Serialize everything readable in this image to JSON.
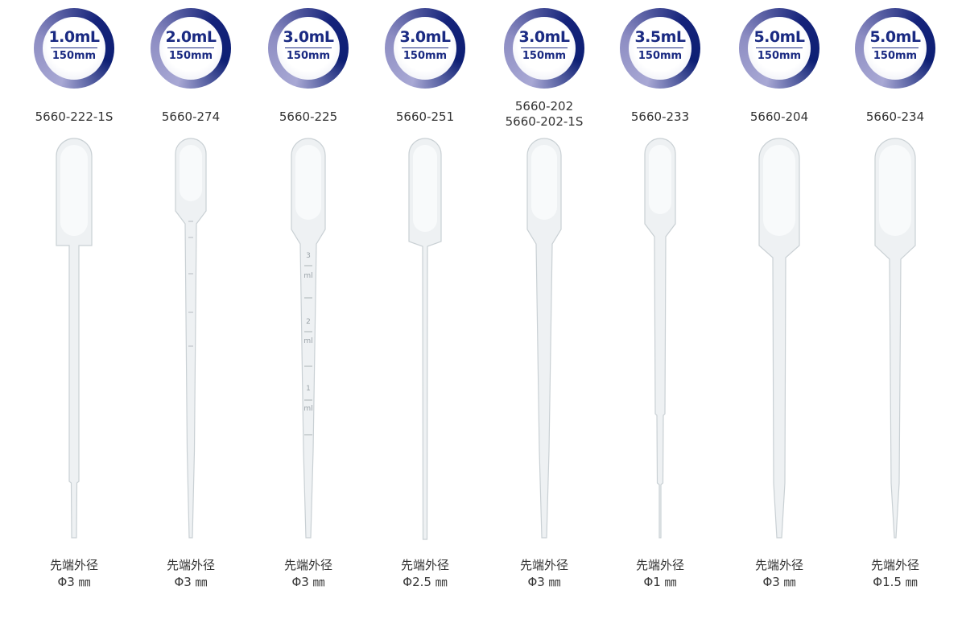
{
  "products": [
    {
      "volume": "1.0mL",
      "length": "150mm",
      "codes": [
        "5660-222-1S"
      ],
      "tip_label": "先端外径",
      "tip_diameter": "Φ3 ㎜",
      "graduated": false
    },
    {
      "volume": "2.0mL",
      "length": "150mm",
      "codes": [
        "5660-274"
      ],
      "tip_label": "先端外径",
      "tip_diameter": "Φ3 ㎜",
      "graduated": true
    },
    {
      "volume": "3.0mL",
      "length": "150mm",
      "codes": [
        "5660-225"
      ],
      "tip_label": "先端外径",
      "tip_diameter": "Φ3 ㎜",
      "graduated": true,
      "graduation_marks": [
        "3",
        "ml",
        "2",
        "ml",
        "1",
        "ml"
      ]
    },
    {
      "volume": "3.0mL",
      "length": "150mm",
      "codes": [
        "5660-251"
      ],
      "tip_label": "先端外径",
      "tip_diameter": "Φ2.5 ㎜",
      "graduated": false
    },
    {
      "volume": "3.0mL",
      "length": "150mm",
      "codes": [
        "5660-202",
        "5660-202-1S"
      ],
      "tip_label": "先端外径",
      "tip_diameter": "Φ3 ㎜",
      "graduated": false
    },
    {
      "volume": "3.5mL",
      "length": "150mm",
      "codes": [
        "5660-233"
      ],
      "tip_label": "先端外径",
      "tip_diameter": "Φ1 ㎜",
      "graduated": false
    },
    {
      "volume": "5.0mL",
      "length": "150mm",
      "codes": [
        "5660-204"
      ],
      "tip_label": "先端外径",
      "tip_diameter": "Φ3 ㎜",
      "graduated": false
    },
    {
      "volume": "5.0mL",
      "length": "150mm",
      "codes": [
        "5660-234"
      ],
      "tip_label": "先端外径",
      "tip_diameter": "Φ1.5 ㎜",
      "graduated": false
    }
  ],
  "colors": {
    "badge_navy": "#1a2a82",
    "badge_light": "#a8a8d4",
    "text": "#333333"
  }
}
